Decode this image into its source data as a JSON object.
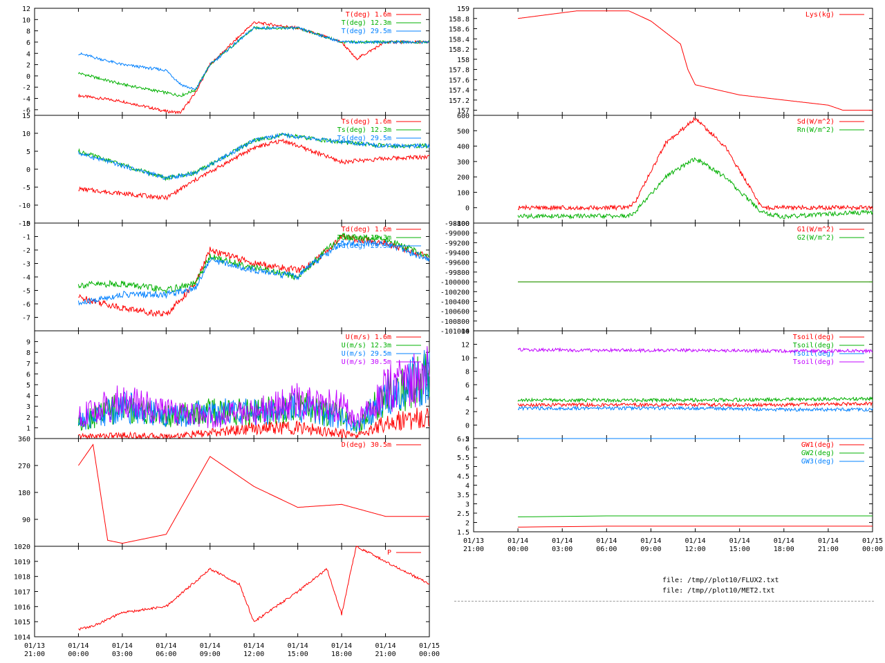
{
  "files": [
    "file: /tmp//plot10/FLUX2.txt",
    "file: /tmp//plot10/MET2.txt"
  ],
  "colors": {
    "red": "#ff0000",
    "green": "#00b000",
    "blue": "#0080ff",
    "magenta": "#c000ff",
    "axis": "#000000"
  },
  "x_ticks": [
    {
      "date": "01/13",
      "time": "21:00"
    },
    {
      "date": "01/14",
      "time": "00:00"
    },
    {
      "date": "01/14",
      "time": "03:00"
    },
    {
      "date": "01/14",
      "time": "06:00"
    },
    {
      "date": "01/14",
      "time": "09:00"
    },
    {
      "date": "01/14",
      "time": "12:00"
    },
    {
      "date": "01/14",
      "time": "15:00"
    },
    {
      "date": "01/14",
      "time": "18:00"
    },
    {
      "date": "01/14",
      "time": "21:00"
    },
    {
      "date": "01/15",
      "time": "00:00"
    }
  ],
  "chart_data": [
    {
      "type": "line",
      "panel": "air-temperature",
      "ylim": [
        -7,
        12
      ],
      "ytick_labels": [
        "-6",
        "-4",
        "-2",
        "0",
        "2",
        "4",
        "6",
        "8",
        "10",
        "12"
      ],
      "x": [
        "01/14 00:00",
        "01/14 03:00",
        "01/14 06:00",
        "01/14 07:00",
        "01/14 08:00",
        "01/14 09:00",
        "01/14 12:00",
        "01/14 15:00",
        "01/14 18:00",
        "01/14 19:00",
        "01/14 21:00",
        "01/15 00:00"
      ],
      "series": [
        {
          "name": "T(deg)  1.6m",
          "color": "red",
          "values": [
            -3.5,
            -4.5,
            -6.3,
            -6.5,
            -3,
            2,
            9.5,
            8.5,
            6,
            3,
            6,
            6
          ]
        },
        {
          "name": "T(deg) 12.3m",
          "color": "green",
          "values": [
            0.5,
            -1.5,
            -3,
            -3.5,
            -2.5,
            2,
            8.5,
            8.5,
            6,
            6,
            6,
            6
          ]
        },
        {
          "name": "T(deg) 29.5m",
          "color": "blue",
          "values": [
            4,
            2,
            1,
            -1.5,
            -2.5,
            2,
            8.5,
            8.5,
            6,
            6,
            6,
            6
          ]
        }
      ]
    },
    {
      "type": "line",
      "panel": "surface-temperature",
      "ylim": [
        -15,
        15
      ],
      "ytick_labels": [
        "-15",
        "-10",
        "-5",
        "0",
        "5",
        "10",
        "15"
      ],
      "x": [
        "01/14 00:00",
        "01/14 06:00",
        "01/14 08:00",
        "01/14 12:00",
        "01/14 14:00",
        "01/14 18:00",
        "01/14 21:00",
        "01/15 00:00"
      ],
      "series": [
        {
          "name": "Ts(deg)  1.6m",
          "color": "red",
          "values": [
            -5.5,
            -8,
            -3,
            6,
            8,
            2,
            3,
            3.5
          ]
        },
        {
          "name": "Ts(deg) 12.3m",
          "color": "green",
          "values": [
            5,
            -2.5,
            -1,
            8,
            9.5,
            7.5,
            6.5,
            6.5
          ]
        },
        {
          "name": "Ts(deg) 29.5m",
          "color": "blue",
          "values": [
            4.5,
            -2.5,
            -1,
            8,
            9.5,
            7.5,
            6.5,
            6.5
          ]
        }
      ]
    },
    {
      "type": "line",
      "panel": "dewpoint",
      "ylim": [
        -8,
        0
      ],
      "ytick_labels": [
        "-7",
        "-6",
        "-5",
        "-4",
        "-3",
        "-2",
        "-1",
        "0"
      ],
      "x": [
        "01/14 00:00",
        "01/14 03:00",
        "01/14 06:00",
        "01/14 08:00",
        "01/14 09:00",
        "01/14 12:00",
        "01/14 15:00",
        "01/14 16:00",
        "01/14 18:00",
        "01/14 21:00",
        "01/15 00:00"
      ],
      "series": [
        {
          "name": "Td(deg)  1.6m",
          "color": "red",
          "values": [
            -5.5,
            -6.3,
            -6.8,
            -4.5,
            -2,
            -3,
            -3.5,
            -3,
            -1,
            -1.5,
            -2.5
          ]
        },
        {
          "name": "Td(deg) 12.3m",
          "color": "green",
          "values": [
            -4.6,
            -4.5,
            -5,
            -4.5,
            -2.5,
            -3.3,
            -4,
            -3,
            -1,
            -1.2,
            -2.5
          ]
        },
        {
          "name": "Td(deg) 29.5m",
          "color": "blue",
          "values": [
            -6,
            -5.3,
            -5.3,
            -4.8,
            -2.7,
            -3.5,
            -4,
            -3,
            -1.5,
            -1.5,
            -2.7
          ]
        }
      ]
    },
    {
      "type": "line",
      "panel": "wind-speed",
      "ylim": [
        0,
        10
      ],
      "ytick_labels": [
        "1",
        "2",
        "3",
        "4",
        "5",
        "6",
        "7",
        "8",
        "9"
      ],
      "x": [
        "01/14 00:00",
        "01/14 03:00",
        "01/14 06:00",
        "01/14 09:00",
        "01/14 12:00",
        "01/14 15:00",
        "01/14 18:00",
        "01/14 19:00",
        "01/14 21:00",
        "01/15 00:00"
      ],
      "series": [
        {
          "name": "U(m/s)  1.6m",
          "color": "red",
          "values": [
            0.2,
            0.3,
            0.2,
            0.5,
            1,
            1,
            0.5,
            0.2,
            1.5,
            2
          ]
        },
        {
          "name": "U(m/s) 12.3m",
          "color": "green",
          "values": [
            1.5,
            3,
            2,
            2.5,
            2.5,
            3,
            2,
            1,
            4,
            6
          ]
        },
        {
          "name": "U(m/s) 29.5m",
          "color": "blue",
          "values": [
            1.5,
            3,
            2,
            2.5,
            2.5,
            3,
            2,
            1,
            4,
            6
          ]
        },
        {
          "name": "U(m/s) 30.5m",
          "color": "magenta",
          "values": [
            2,
            3.5,
            2.5,
            2,
            2.5,
            3.5,
            3,
            1.5,
            4.5,
            6
          ]
        }
      ]
    },
    {
      "type": "line",
      "panel": "wind-direction",
      "ylim": [
        0,
        360
      ],
      "ytick_labels": [
        "90",
        "180",
        "270",
        "360"
      ],
      "x": [
        "01/14 00:00",
        "01/14 01:00",
        "01/14 02:00",
        "01/14 03:00",
        "01/14 06:00",
        "01/14 09:00",
        "01/14 12:00",
        "01/14 15:00",
        "01/14 18:00",
        "01/14 21:00",
        "01/15 00:00"
      ],
      "series": [
        {
          "name": "D(deg)  30.5m",
          "color": "red",
          "values": [
            270,
            340,
            20,
            10,
            40,
            300,
            200,
            130,
            140,
            100,
            100
          ]
        }
      ]
    },
    {
      "type": "line",
      "panel": "pressure",
      "ylim": [
        1014,
        1020
      ],
      "ytick_labels": [
        "1014",
        "1015",
        "1016",
        "1017",
        "1018",
        "1019",
        "1020"
      ],
      "x": [
        "01/14 00:00",
        "01/14 01:00",
        "01/14 03:00",
        "01/14 06:00",
        "01/14 09:00",
        "01/14 11:00",
        "01/14 12:00",
        "01/14 15:00",
        "01/14 17:00",
        "01/14 18:00",
        "01/14 19:00",
        "01/14 21:00",
        "01/15 00:00"
      ],
      "series": [
        {
          "name": "P",
          "color": "red",
          "values": [
            1014.5,
            1014.7,
            1015.6,
            1016,
            1018.5,
            1017.5,
            1015,
            1017,
            1018.5,
            1015.5,
            1020,
            1019,
            1017.5
          ]
        }
      ]
    },
    {
      "type": "line",
      "panel": "lysimeter",
      "ylim": [
        156.9,
        159
      ],
      "ytick_labels": [
        "157",
        "157.2",
        "157.4",
        "157.6",
        "157.8",
        "158",
        "158.2",
        "158.4",
        "158.6",
        "158.8",
        "159"
      ],
      "x": [
        "01/14 00:00",
        "01/14 04:00",
        "01/14 07:30",
        "01/14 09:00",
        "01/14 11:00",
        "01/14 11:30",
        "01/14 12:00",
        "01/14 15:00",
        "01/14 18:00",
        "01/14 21:00",
        "01/14 22:00",
        "01/15 00:00"
      ],
      "series": [
        {
          "name": "Lys(kg)",
          "color": "red",
          "values": [
            158.8,
            158.95,
            158.95,
            158.75,
            158.3,
            157.8,
            157.5,
            157.3,
            157.2,
            157.1,
            157,
            157
          ]
        }
      ]
    },
    {
      "type": "line",
      "panel": "radiation",
      "ylim": [
        -100,
        600
      ],
      "ytick_labels": [
        "-100",
        "0",
        "100",
        "200",
        "300",
        "400",
        "500",
        "600"
      ],
      "x": [
        "01/14 00:00",
        "01/14 07:30",
        "01/14 08:00",
        "01/14 10:00",
        "01/14 12:00",
        "01/14 14:00",
        "01/14 16:30",
        "01/14 18:00",
        "01/14 21:00",
        "01/15 00:00"
      ],
      "series": [
        {
          "name": "Sd(W/m^2)",
          "color": "red",
          "values": [
            0,
            0,
            50,
            420,
            580,
            400,
            0,
            0,
            0,
            0
          ]
        },
        {
          "name": "Rn(W/m^2)",
          "color": "green",
          "values": [
            -55,
            -55,
            -20,
            200,
            320,
            200,
            -30,
            -60,
            -40,
            -30
          ]
        }
      ]
    },
    {
      "type": "line",
      "panel": "ground-heat-flux",
      "ylim": [
        -101000,
        -98800
      ],
      "ytick_labels": [
        "-101000",
        "-100800",
        "-100600",
        "-100400",
        "-100200",
        "-100000",
        "-99800",
        "-99600",
        "-99400",
        "-99200",
        "-99000",
        "-98800"
      ],
      "x": [
        "01/14 00:00",
        "01/15 00:00"
      ],
      "series": [
        {
          "name": "G1(W/m^2)",
          "color": "red",
          "values": [
            -100000,
            -100000
          ]
        },
        {
          "name": "G2(W/m^2)",
          "color": "green",
          "values": [
            -100000,
            -100000
          ]
        }
      ]
    },
    {
      "type": "line",
      "panel": "soil-temperature",
      "ylim": [
        -2,
        14
      ],
      "ytick_labels": [
        "-2",
        "0",
        "2",
        "4",
        "6",
        "8",
        "10",
        "12",
        "14"
      ],
      "x": [
        "01/14 00:00",
        "01/14 06:00",
        "01/14 12:00",
        "01/14 18:00",
        "01/15 00:00"
      ],
      "series": [
        {
          "name": "Tsoil(deg)",
          "color": "red",
          "values": [
            3,
            3,
            3,
            3,
            3.2
          ]
        },
        {
          "name": "Tsoil(deg)",
          "color": "green",
          "values": [
            3.7,
            3.7,
            3.7,
            3.8,
            3.9
          ]
        },
        {
          "name": "Tsoil(deg)",
          "color": "blue",
          "values": [
            2.5,
            2.5,
            2.5,
            2.3,
            2.3
          ]
        },
        {
          "name": "Tsoil(deg)",
          "color": "magenta",
          "values": [
            11.2,
            11.1,
            11.1,
            11,
            11
          ]
        }
      ]
    },
    {
      "type": "line",
      "panel": "groundwater",
      "ylim": [
        1.5,
        6.5
      ],
      "ytick_labels": [
        "1.5",
        "2",
        "2.5",
        "3",
        "3.5",
        "4",
        "4.5",
        "5",
        "5.5",
        "6",
        "6.5"
      ],
      "x": [
        "01/14 00:00",
        "01/14 06:00",
        "01/15 00:00"
      ],
      "series": [
        {
          "name": "GW1(deg)",
          "color": "red",
          "values": [
            1.75,
            1.8,
            1.8
          ]
        },
        {
          "name": "GW2(deg)",
          "color": "green",
          "values": [
            2.3,
            2.35,
            2.35
          ]
        },
        {
          "name": "GW3(deg)",
          "color": "blue",
          "values": [
            6.5,
            6.5,
            6.5
          ]
        }
      ]
    }
  ]
}
